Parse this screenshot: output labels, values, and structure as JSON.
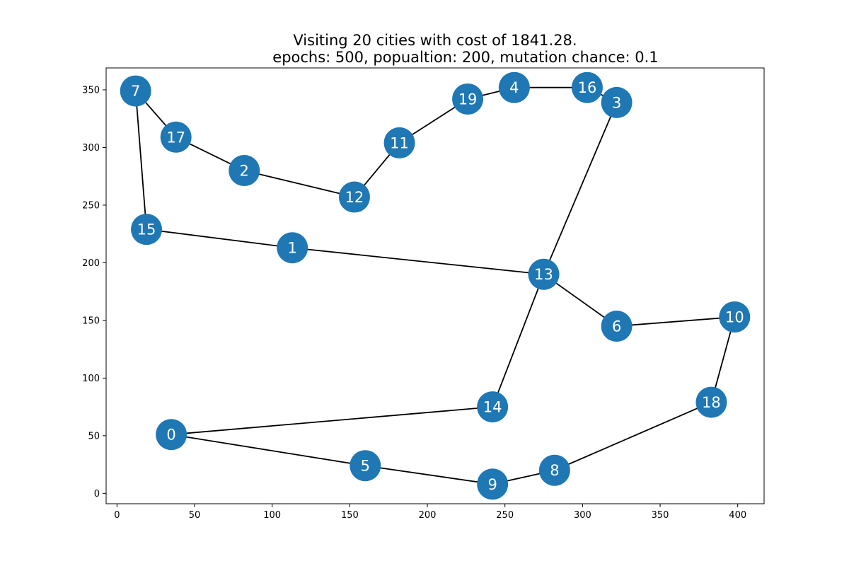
{
  "chart_data": {
    "type": "scatter",
    "title": "Visiting 20 cities with cost of 1841.28.",
    "subtitle": "epochs: 500, popualtion: 200, mutation chance: 0.1",
    "xlabel": "",
    "ylabel": "",
    "xlim": [
      -7,
      417
    ],
    "ylim": [
      -9,
      369
    ],
    "x_ticks": [
      0,
      50,
      100,
      150,
      200,
      250,
      300,
      350,
      400
    ],
    "y_ticks": [
      0,
      50,
      100,
      150,
      200,
      250,
      300,
      350
    ],
    "grid": false,
    "node_color": "#1f77b4",
    "edge_color": "#000000",
    "cities": [
      {
        "id": "0",
        "x": 35,
        "y": 51
      },
      {
        "id": "1",
        "x": 113,
        "y": 213
      },
      {
        "id": "2",
        "x": 82,
        "y": 280
      },
      {
        "id": "3",
        "x": 322,
        "y": 339
      },
      {
        "id": "4",
        "x": 256,
        "y": 352
      },
      {
        "id": "5",
        "x": 160,
        "y": 24
      },
      {
        "id": "6",
        "x": 322,
        "y": 145
      },
      {
        "id": "7",
        "x": 12,
        "y": 349
      },
      {
        "id": "8",
        "x": 282,
        "y": 20
      },
      {
        "id": "9",
        "x": 242,
        "y": 8
      },
      {
        "id": "10",
        "x": 398,
        "y": 153
      },
      {
        "id": "11",
        "x": 182,
        "y": 304
      },
      {
        "id": "12",
        "x": 153,
        "y": 257
      },
      {
        "id": "13",
        "x": 275,
        "y": 190
      },
      {
        "id": "14",
        "x": 242,
        "y": 75
      },
      {
        "id": "15",
        "x": 19,
        "y": 229
      },
      {
        "id": "16",
        "x": 303,
        "y": 352
      },
      {
        "id": "17",
        "x": 38,
        "y": 309
      },
      {
        "id": "18",
        "x": 383,
        "y": 79
      },
      {
        "id": "19",
        "x": 226,
        "y": 342
      }
    ],
    "route": [
      "0",
      "5",
      "9",
      "8",
      "18",
      "10",
      "6",
      "13",
      "1",
      "15",
      "7",
      "17",
      "2",
      "12",
      "11",
      "19",
      "4",
      "16",
      "3",
      "13",
      "14",
      "0"
    ]
  }
}
